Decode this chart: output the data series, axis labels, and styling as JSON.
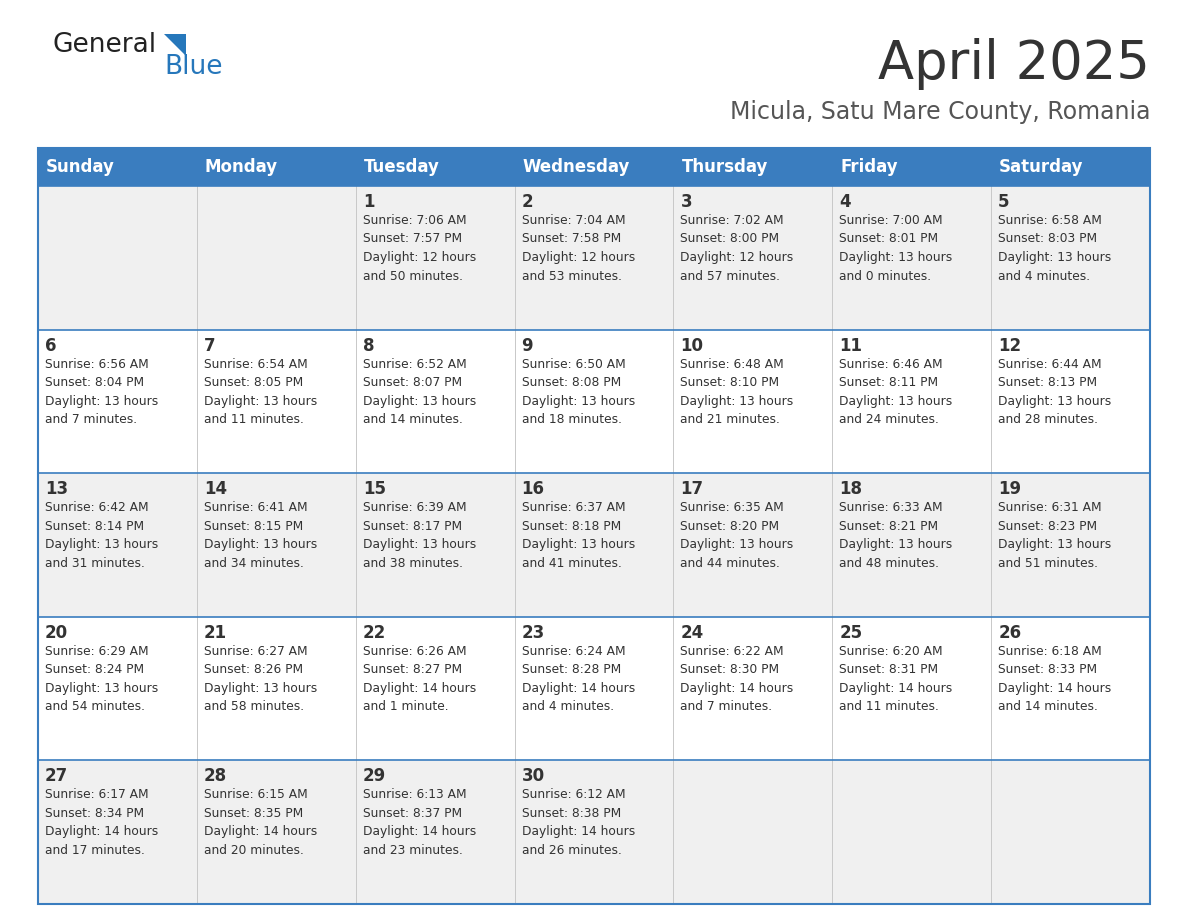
{
  "title": "April 2025",
  "subtitle": "Micula, Satu Mare County, Romania",
  "days_of_week": [
    "Sunday",
    "Monday",
    "Tuesday",
    "Wednesday",
    "Thursday",
    "Friday",
    "Saturday"
  ],
  "header_bg": "#3a7dbf",
  "header_text": "#ffffff",
  "row_bg_odd": "#f0f0f0",
  "row_bg_even": "#ffffff",
  "cell_border_color": "#3a7dbf",
  "row_divider_color": "#3a7dbf",
  "day_number_color": "#333333",
  "cell_text_color": "#333333",
  "title_color": "#333333",
  "subtitle_color": "#555555",
  "logo_general_color": "#222222",
  "logo_blue_color": "#2677bb",
  "logo_triangle_color": "#2677bb",
  "calendar_data": [
    [
      {
        "day": null,
        "info": ""
      },
      {
        "day": null,
        "info": ""
      },
      {
        "day": 1,
        "info": "Sunrise: 7:06 AM\nSunset: 7:57 PM\nDaylight: 12 hours\nand 50 minutes."
      },
      {
        "day": 2,
        "info": "Sunrise: 7:04 AM\nSunset: 7:58 PM\nDaylight: 12 hours\nand 53 minutes."
      },
      {
        "day": 3,
        "info": "Sunrise: 7:02 AM\nSunset: 8:00 PM\nDaylight: 12 hours\nand 57 minutes."
      },
      {
        "day": 4,
        "info": "Sunrise: 7:00 AM\nSunset: 8:01 PM\nDaylight: 13 hours\nand 0 minutes."
      },
      {
        "day": 5,
        "info": "Sunrise: 6:58 AM\nSunset: 8:03 PM\nDaylight: 13 hours\nand 4 minutes."
      }
    ],
    [
      {
        "day": 6,
        "info": "Sunrise: 6:56 AM\nSunset: 8:04 PM\nDaylight: 13 hours\nand 7 minutes."
      },
      {
        "day": 7,
        "info": "Sunrise: 6:54 AM\nSunset: 8:05 PM\nDaylight: 13 hours\nand 11 minutes."
      },
      {
        "day": 8,
        "info": "Sunrise: 6:52 AM\nSunset: 8:07 PM\nDaylight: 13 hours\nand 14 minutes."
      },
      {
        "day": 9,
        "info": "Sunrise: 6:50 AM\nSunset: 8:08 PM\nDaylight: 13 hours\nand 18 minutes."
      },
      {
        "day": 10,
        "info": "Sunrise: 6:48 AM\nSunset: 8:10 PM\nDaylight: 13 hours\nand 21 minutes."
      },
      {
        "day": 11,
        "info": "Sunrise: 6:46 AM\nSunset: 8:11 PM\nDaylight: 13 hours\nand 24 minutes."
      },
      {
        "day": 12,
        "info": "Sunrise: 6:44 AM\nSunset: 8:13 PM\nDaylight: 13 hours\nand 28 minutes."
      }
    ],
    [
      {
        "day": 13,
        "info": "Sunrise: 6:42 AM\nSunset: 8:14 PM\nDaylight: 13 hours\nand 31 minutes."
      },
      {
        "day": 14,
        "info": "Sunrise: 6:41 AM\nSunset: 8:15 PM\nDaylight: 13 hours\nand 34 minutes."
      },
      {
        "day": 15,
        "info": "Sunrise: 6:39 AM\nSunset: 8:17 PM\nDaylight: 13 hours\nand 38 minutes."
      },
      {
        "day": 16,
        "info": "Sunrise: 6:37 AM\nSunset: 8:18 PM\nDaylight: 13 hours\nand 41 minutes."
      },
      {
        "day": 17,
        "info": "Sunrise: 6:35 AM\nSunset: 8:20 PM\nDaylight: 13 hours\nand 44 minutes."
      },
      {
        "day": 18,
        "info": "Sunrise: 6:33 AM\nSunset: 8:21 PM\nDaylight: 13 hours\nand 48 minutes."
      },
      {
        "day": 19,
        "info": "Sunrise: 6:31 AM\nSunset: 8:23 PM\nDaylight: 13 hours\nand 51 minutes."
      }
    ],
    [
      {
        "day": 20,
        "info": "Sunrise: 6:29 AM\nSunset: 8:24 PM\nDaylight: 13 hours\nand 54 minutes."
      },
      {
        "day": 21,
        "info": "Sunrise: 6:27 AM\nSunset: 8:26 PM\nDaylight: 13 hours\nand 58 minutes."
      },
      {
        "day": 22,
        "info": "Sunrise: 6:26 AM\nSunset: 8:27 PM\nDaylight: 14 hours\nand 1 minute."
      },
      {
        "day": 23,
        "info": "Sunrise: 6:24 AM\nSunset: 8:28 PM\nDaylight: 14 hours\nand 4 minutes."
      },
      {
        "day": 24,
        "info": "Sunrise: 6:22 AM\nSunset: 8:30 PM\nDaylight: 14 hours\nand 7 minutes."
      },
      {
        "day": 25,
        "info": "Sunrise: 6:20 AM\nSunset: 8:31 PM\nDaylight: 14 hours\nand 11 minutes."
      },
      {
        "day": 26,
        "info": "Sunrise: 6:18 AM\nSunset: 8:33 PM\nDaylight: 14 hours\nand 14 minutes."
      }
    ],
    [
      {
        "day": 27,
        "info": "Sunrise: 6:17 AM\nSunset: 8:34 PM\nDaylight: 14 hours\nand 17 minutes."
      },
      {
        "day": 28,
        "info": "Sunrise: 6:15 AM\nSunset: 8:35 PM\nDaylight: 14 hours\nand 20 minutes."
      },
      {
        "day": 29,
        "info": "Sunrise: 6:13 AM\nSunset: 8:37 PM\nDaylight: 14 hours\nand 23 minutes."
      },
      {
        "day": 30,
        "info": "Sunrise: 6:12 AM\nSunset: 8:38 PM\nDaylight: 14 hours\nand 26 minutes."
      },
      {
        "day": null,
        "info": ""
      },
      {
        "day": null,
        "info": ""
      },
      {
        "day": null,
        "info": ""
      }
    ]
  ]
}
